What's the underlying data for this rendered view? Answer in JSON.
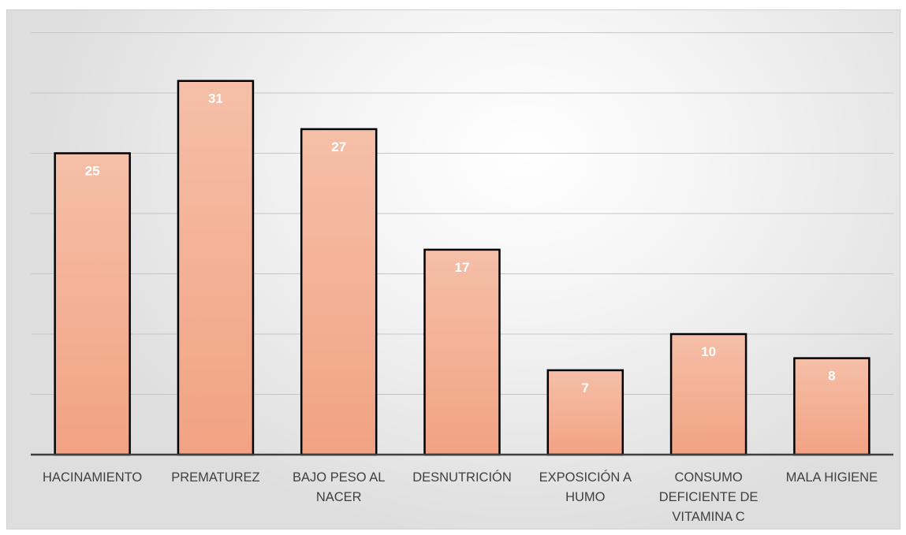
{
  "colors": {
    "bar_top": "#f5bfa8",
    "bar_bottom": "#f2a283",
    "bar_outline": "#000000",
    "data_label": "#ffffff",
    "gridline": "#c6c6c6",
    "axis": "#404040"
  },
  "chart_data": {
    "type": "bar",
    "categories": [
      "HACINAMIENTO",
      "PREMATUREZ",
      "BAJO PESO AL NACER",
      "DESNUTRICIÓN",
      "EXPOSICIÓN A HUMO",
      "CONSUMO DEFICIENTE DE VITAMINA C",
      "MALA HIGIENE"
    ],
    "category_lines": [
      [
        "HACINAMIENTO"
      ],
      [
        "PREMATUREZ"
      ],
      [
        "BAJO PESO AL",
        "NACER"
      ],
      [
        "DESNUTRICIÓN"
      ],
      [
        "EXPOSICIÓN A",
        "HUMO"
      ],
      [
        "CONSUMO",
        "DEFICIENTE DE",
        "VITAMINA C"
      ],
      [
        "MALA HIGIENE"
      ]
    ],
    "values": [
      25,
      31,
      27,
      17,
      7,
      10,
      8
    ],
    "data_labels": [
      "25",
      "31",
      "27",
      "17",
      "7",
      "10",
      "8"
    ],
    "title": "",
    "xlabel": "",
    "ylabel": "",
    "ylim": [
      0,
      35
    ],
    "y_gridlines": [
      5,
      10,
      15,
      20,
      25,
      30,
      35
    ],
    "grid": true,
    "legend": "none",
    "data_label_position": "inside-top"
  }
}
